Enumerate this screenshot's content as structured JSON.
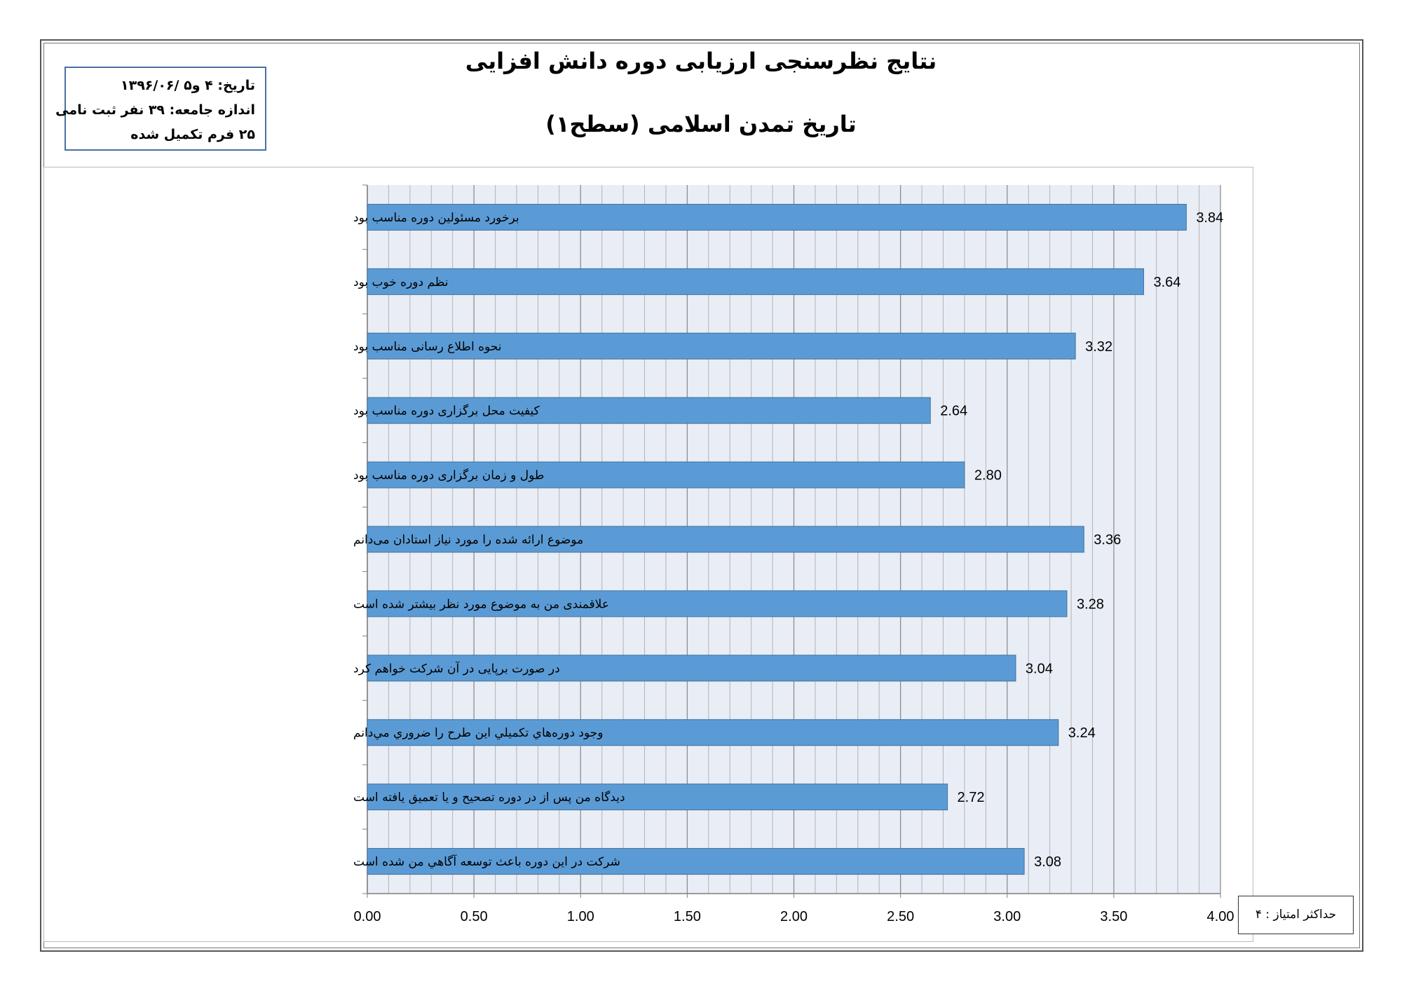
{
  "header": {
    "title": "نتایج نظرسنجی ارزیابی دوره دانش افزایی",
    "subtitle": "تاریخ تمدن اسلامی (سطح۱)"
  },
  "info": {
    "date": "تاریخ: ۴ و۵ /۱۳۹۶/۰۶",
    "population": "اندازه جامعه: ۳۹ نفر ثبت نامی",
    "completed": "۲۵ فرم تکمیل شده"
  },
  "max_score": "حداکثر امتیاز : ۴",
  "colors": {
    "bar": "#5b9bd5",
    "bar_stroke": "#41719c",
    "plot_bg": "#e9edf5",
    "grid": "#8e8e8e"
  },
  "chart_data": {
    "type": "bar",
    "orientation": "horizontal",
    "categories": [
      "برخورد مسئولین دوره مناسب بود",
      "نظم دوره خوب بود",
      "نحوه اطلاع رسانی مناسب بود",
      "کیفیت محل برگزاری دوره  مناسب بود",
      "طول و زمان برگزاری دوره مناسب بود",
      "موضوع ارائه شده را مورد نیاز استادان می‌دانم",
      "علاقمندی من به موضوع مورد نظر بیشتر شده است",
      "در صورت برپایی در آن شرکت خواهم کرد",
      "وجود دوره‌هاي تكميلي اين طرح را ضروري مي‌دانم",
      "دیدگاه من پس از در دوره تصحیح و یا تعمیق یافته است",
      "شرکت در این دوره باعث توسعه آگاهي من شده است"
    ],
    "values": [
      3.84,
      3.64,
      3.32,
      2.64,
      2.8,
      3.36,
      3.28,
      3.04,
      3.24,
      2.72,
      3.08
    ],
    "value_labels": [
      "3.84",
      "3.64",
      "3.32",
      "2.64",
      "2.80",
      "3.36",
      "3.28",
      "3.04",
      "3.24",
      "2.72",
      "3.08"
    ],
    "xlim": [
      0,
      4
    ],
    "major_ticks": [
      0,
      0.5,
      1,
      1.5,
      2,
      2.5,
      3,
      3.5,
      4
    ],
    "tick_labels": [
      "0.00",
      "0.50",
      "1.00",
      "1.50",
      "2.00",
      "2.50",
      "3.00",
      "3.50",
      "4.00"
    ],
    "minor_step": 0.1,
    "grid": true,
    "legend": "none"
  }
}
